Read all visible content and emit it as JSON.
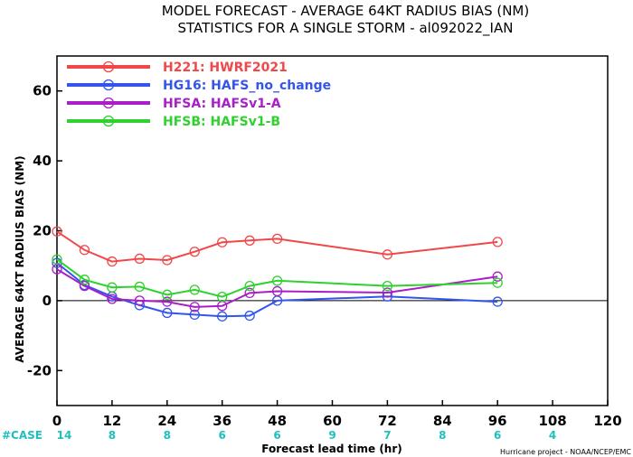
{
  "chart_data": {
    "type": "line",
    "title": "MODEL FORECAST - AVERAGE 64KT RADIUS BIAS (NM)",
    "subtitle": "STATISTICS FOR A SINGLE STORM - al092022_IAN",
    "xlabel": "Forecast lead time (hr)",
    "ylabel": "AVERAGE 64KT RADIUS BIAS (NM)",
    "xlim": [
      0,
      120
    ],
    "ylim": [
      -30,
      70
    ],
    "xticks": [
      0,
      12,
      24,
      36,
      48,
      60,
      72,
      84,
      96,
      108,
      120
    ],
    "yticks": [
      -20,
      0,
      20,
      40,
      60
    ],
    "zero_line": true,
    "grid": false,
    "legend_position": "top-left",
    "case_label": "#CASE",
    "case_counts": [
      {
        "x": 0,
        "n": "14"
      },
      {
        "x": 12,
        "n": "8"
      },
      {
        "x": 24,
        "n": "8"
      },
      {
        "x": 36,
        "n": "6"
      },
      {
        "x": 48,
        "n": "6"
      },
      {
        "x": 60,
        "n": "9"
      },
      {
        "x": 72,
        "n": "7"
      },
      {
        "x": 84,
        "n": "8"
      },
      {
        "x": 96,
        "n": "6"
      },
      {
        "x": 108,
        "n": "4"
      }
    ],
    "credit": "Hurricane project - NOAA/NCEP/EMC",
    "series": [
      {
        "name": "H221: HWRF2021",
        "color": "#f04848",
        "x": [
          0,
          6,
          12,
          18,
          24,
          30,
          36,
          42,
          48,
          72,
          96
        ],
        "y": [
          19.8,
          14.5,
          11.2,
          12.0,
          11.6,
          14.0,
          16.7,
          17.2,
          17.7,
          13.2,
          16.8
        ]
      },
      {
        "name": "HG16: HAFS_no_change",
        "color": "#3355ee",
        "x": [
          0,
          6,
          12,
          18,
          24,
          30,
          36,
          42,
          48,
          72,
          96
        ],
        "y": [
          10.8,
          4.5,
          1.2,
          -1.3,
          -3.5,
          -4.0,
          -4.5,
          -4.3,
          0.0,
          1.2,
          -0.3
        ]
      },
      {
        "name": "HFSA: HAFSv1-A",
        "color": "#aa1ec8",
        "x": [
          0,
          6,
          12,
          18,
          24,
          30,
          36,
          42,
          48,
          72,
          96
        ],
        "y": [
          9.0,
          4.2,
          0.5,
          0.0,
          -0.3,
          -1.8,
          -1.5,
          2.2,
          2.7,
          2.3,
          6.9
        ]
      },
      {
        "name": "HFSB: HAFSv1-B",
        "color": "#2ed12e",
        "x": [
          0,
          6,
          12,
          18,
          24,
          30,
          36,
          42,
          48,
          72,
          96
        ],
        "y": [
          11.8,
          6.0,
          3.8,
          4.0,
          1.7,
          3.1,
          1.1,
          4.2,
          5.7,
          4.2,
          5.1
        ]
      }
    ]
  }
}
